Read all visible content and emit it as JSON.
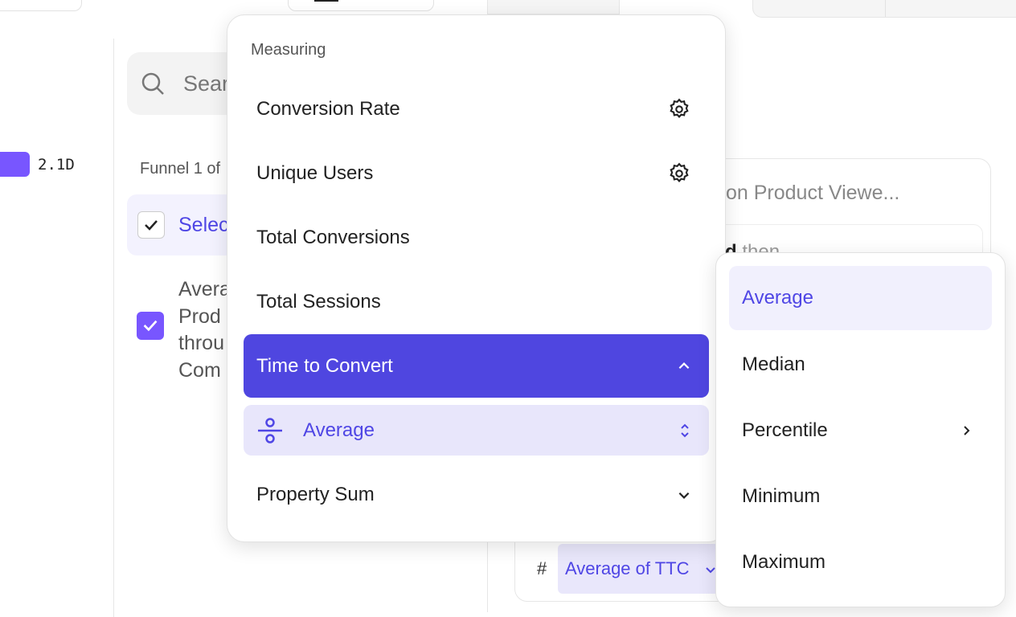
{
  "left_panel": {
    "bar_value": "2.1D",
    "accent": "#7856ff"
  },
  "search": {
    "placeholder": "Sear"
  },
  "funnel_label": "Funnel 1 of",
  "rows": [
    {
      "label": "Selec",
      "checked": true
    },
    {
      "lines": [
        "Avera",
        "Prod",
        "throu",
        "Com"
      ],
      "checked": true
    }
  ],
  "card": {
    "step_text": "on Product Viewe...",
    "then_bold": "d",
    "then_text": "then",
    "hash": "#",
    "chip_label": "Average of TTC"
  },
  "measuring_menu": {
    "header": "Measuring",
    "items": [
      {
        "label": "Conversion Rate",
        "icon": "gear-icon"
      },
      {
        "label": "Unique Users",
        "icon": "gear-icon"
      },
      {
        "label": "Total Conversions"
      },
      {
        "label": "Total Sessions"
      },
      {
        "label": "Time to Convert",
        "icon": "chevron-up-icon",
        "active": true
      },
      {
        "label": "Property Sum",
        "icon": "chevron-down-icon"
      }
    ],
    "sub_item": {
      "label": "Average",
      "icon": "divide-icon"
    },
    "active_color": "#4f46e0"
  },
  "aggregation_menu": {
    "items": [
      {
        "label": "Average",
        "selected": true
      },
      {
        "label": "Median"
      },
      {
        "label": "Percentile",
        "icon": "chevron-right-icon"
      },
      {
        "label": "Minimum"
      },
      {
        "label": "Maximum"
      }
    ]
  }
}
